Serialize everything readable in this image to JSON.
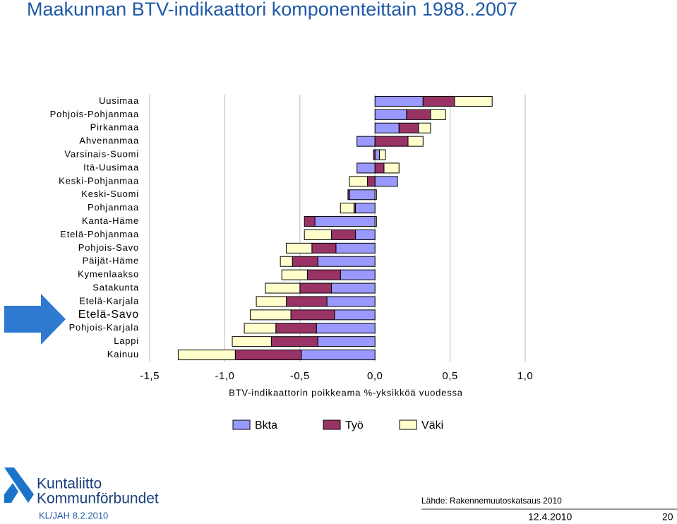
{
  "chart_data": {
    "type": "bar",
    "orientation": "horizontal",
    "title": "Maakunnan BTV-indikaattori komponenteittain 1988..2007",
    "categories": [
      "Uusimaa",
      "Pohjois-Pohjanmaa",
      "Pirkanmaa",
      "Ahvenanmaa",
      "Varsinais-Suomi",
      "Itä-Uusimaa",
      "Keski-Pohjanmaa",
      "Keski-Suomi",
      "Pohjanmaa",
      "Kanta-Häme",
      "Etelä-Pohjanmaa",
      "Pohjois-Savo",
      "Päijät-Häme",
      "Kymenlaakso",
      "Satakunta",
      "Etelä-Karjala",
      "Etelä-Savo",
      "Pohjois-Karjala",
      "Lappi",
      "Kainuu"
    ],
    "series": [
      {
        "name": "Bkta",
        "color": "#9999ff",
        "values": [
          0.32,
          0.21,
          0.16,
          -0.12,
          0.03,
          -0.12,
          0.15,
          -0.17,
          -0.13,
          -0.4,
          -0.13,
          -0.26,
          -0.38,
          -0.23,
          -0.29,
          -0.32,
          -0.27,
          -0.39,
          -0.38,
          -0.49
        ]
      },
      {
        "name": "Työ",
        "color": "#993366",
        "values": [
          0.21,
          0.16,
          0.13,
          0.22,
          -0.01,
          0.06,
          -0.05,
          -0.01,
          -0.01,
          -0.07,
          -0.16,
          -0.16,
          -0.17,
          -0.22,
          -0.21,
          -0.27,
          -0.29,
          -0.27,
          -0.31,
          -0.44
        ]
      },
      {
        "name": "Väki",
        "color": "#ffffcc",
        "values": [
          0.25,
          0.1,
          0.08,
          0.1,
          0.04,
          0.1,
          -0.12,
          0.01,
          -0.09,
          0.01,
          -0.18,
          -0.17,
          -0.08,
          -0.17,
          -0.23,
          -0.2,
          -0.27,
          -0.21,
          -0.26,
          -0.38
        ]
      }
    ],
    "xlim": [
      -1.5,
      1.0
    ],
    "xticks": [
      {
        "value": -1.5,
        "label": "-1,5"
      },
      {
        "value": -1.0,
        "label": "-1,0"
      },
      {
        "value": -0.5,
        "label": "-0,5"
      },
      {
        "value": 0,
        "label": "0,0"
      },
      {
        "value": 0.5,
        "label": "0,5"
      },
      {
        "value": 1.0,
        "label": "1,0"
      }
    ],
    "xlabel": "BTV-indikaattorin poikkeama %-yksikköä vuodessa",
    "grid": true,
    "legend": "bottom",
    "highlight": 16
  },
  "footer": {
    "logo_line1": "Kuntaliitto",
    "logo_line2": "Kommunförbundet",
    "author": "KL/JAH 8.2.2010",
    "source": "Lähde: Rakennemuutoskatsaus 2010",
    "date": "12.4.2010",
    "page": "20"
  }
}
